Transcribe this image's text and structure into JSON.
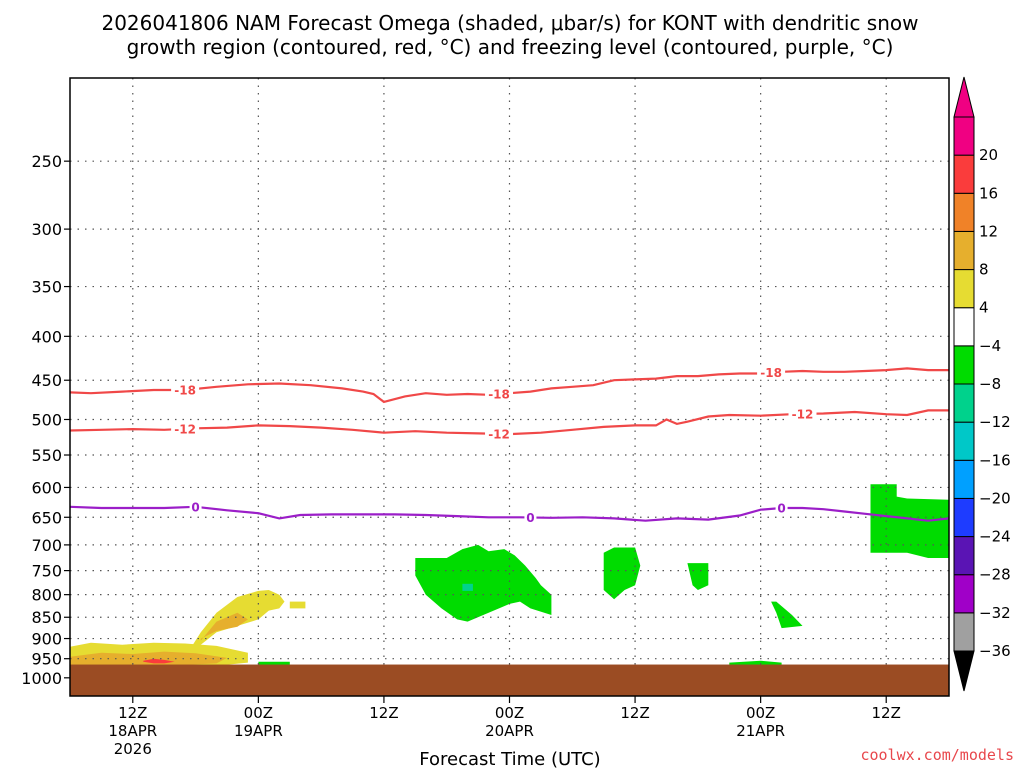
{
  "chart_data": {
    "type": "heatmap",
    "title_line1": "2026041806 NAM Forecast Omega (shaded, μbar/s) for KONT with dendritic snow",
    "title_line2": "growth region (contoured, red, °C) and freezing level (contoured, purple, °C)",
    "xlabel": "Forecast Time (UTC)",
    "credit": "coolwx.com/models",
    "x_unit": "hours since 2026-04-18 06Z",
    "xlim": [
      0,
      84
    ],
    "ylim_hpa": [
      1050,
      200
    ],
    "y_ticks": [
      {
        "value": 250,
        "label": "250"
      },
      {
        "value": 300,
        "label": "300"
      },
      {
        "value": 350,
        "label": "350"
      },
      {
        "value": 400,
        "label": "400"
      },
      {
        "value": 450,
        "label": "450"
      },
      {
        "value": 500,
        "label": "500"
      },
      {
        "value": 550,
        "label": "550"
      },
      {
        "value": 600,
        "label": "600"
      },
      {
        "value": 650,
        "label": "650"
      },
      {
        "value": 700,
        "label": "700"
      },
      {
        "value": 750,
        "label": "750"
      },
      {
        "value": 800,
        "label": "800"
      },
      {
        "value": 850,
        "label": "850"
      },
      {
        "value": 900,
        "label": "900"
      },
      {
        "value": 950,
        "label": "950"
      },
      {
        "value": 1000,
        "label": "1000"
      }
    ],
    "x_ticks": [
      {
        "hour": 6,
        "lines": [
          "12Z",
          "18APR",
          "2026"
        ]
      },
      {
        "hour": 18,
        "lines": [
          "00Z",
          "19APR"
        ]
      },
      {
        "hour": 30,
        "lines": [
          "12Z"
        ]
      },
      {
        "hour": 42,
        "lines": [
          "00Z",
          "20APR"
        ]
      },
      {
        "hour": 54,
        "lines": [
          "12Z"
        ]
      },
      {
        "hour": 66,
        "lines": [
          "00Z",
          "21APR"
        ]
      },
      {
        "hour": 78,
        "lines": [
          "12Z"
        ]
      }
    ],
    "colorbar": {
      "levels": [
        -36,
        -32,
        -28,
        -24,
        -20,
        -16,
        -12,
        -8,
        -4,
        4,
        8,
        12,
        16,
        20
      ],
      "colors": [
        "#a0a0a0",
        "#a000c8",
        "#5a14b4",
        "#1e3cff",
        "#00a0ff",
        "#00c8c8",
        "#00d28c",
        "#00dc00",
        "#ffffff",
        "#e6dc32",
        "#e6af2d",
        "#f08228",
        "#fa3c3c",
        "#f00082"
      ],
      "under_color": "#000000",
      "over_color": "#f00082"
    },
    "terrain_color": "#9b4c23",
    "terrain_top_hpa": 965,
    "series": [
      {
        "name": "-18 °C isotherm",
        "color": "#f04848",
        "label": "-18",
        "label_hours": [
          11,
          41,
          67
        ],
        "x": [
          0,
          2,
          5,
          8,
          11,
          14,
          17,
          20,
          23,
          26,
          28,
          29,
          30,
          32,
          34,
          36,
          38,
          40,
          42,
          44,
          46,
          48,
          50,
          52,
          54,
          56,
          58,
          60,
          62,
          64,
          66,
          68,
          70,
          72,
          74,
          76,
          78,
          80,
          82,
          84
        ],
        "y": [
          465,
          466,
          464,
          462,
          462,
          458,
          455,
          454,
          456,
          460,
          464,
          467,
          477,
          470,
          466,
          468,
          467,
          468,
          466,
          464,
          460,
          458,
          456,
          450,
          449,
          448,
          445,
          445,
          443,
          442,
          442,
          440,
          439,
          440,
          440,
          439,
          438,
          436,
          438,
          438
        ]
      },
      {
        "name": "-12 °C isotherm",
        "color": "#f04848",
        "label": "-12",
        "label_hours": [
          11,
          41,
          70
        ],
        "x": [
          0,
          3,
          6,
          9,
          12,
          15,
          18,
          21,
          24,
          27,
          30,
          33,
          36,
          39,
          42,
          45,
          48,
          51,
          54,
          56,
          57,
          58,
          59,
          61,
          63,
          66,
          69,
          72,
          75,
          78,
          80,
          82,
          84
        ],
        "y": [
          515,
          514,
          513,
          514,
          512,
          511,
          508,
          509,
          511,
          514,
          518,
          516,
          518,
          519,
          520,
          518,
          514,
          510,
          508,
          508,
          500,
          506,
          503,
          496,
          494,
          495,
          493,
          492,
          490,
          493,
          494,
          488,
          488
        ]
      },
      {
        "name": "0 °C isotherm (freezing level)",
        "color": "#9b1ec8",
        "label": "0",
        "label_hours": [
          12,
          44,
          68
        ],
        "x": [
          0,
          3,
          6,
          9,
          12,
          15,
          18,
          20,
          22,
          25,
          28,
          31,
          34,
          37,
          40,
          43,
          46,
          49,
          52,
          55,
          58,
          61,
          64,
          66,
          68,
          70,
          72,
          74,
          76,
          78,
          80,
          82,
          84
        ],
        "y": [
          632,
          634,
          634,
          634,
          632,
          638,
          643,
          652,
          646,
          645,
          645,
          645,
          646,
          648,
          650,
          650,
          651,
          650,
          652,
          656,
          652,
          654,
          647,
          637,
          634,
          634,
          636,
          640,
          644,
          648,
          652,
          656,
          652
        ]
      }
    ],
    "regions": [
      {
        "name": "ascent-yellow-low",
        "color": "#e6dc32",
        "x": [
          0,
          2,
          5,
          8,
          11,
          14,
          17,
          17,
          14,
          11,
          8,
          5,
          2,
          0
        ],
        "y": [
          920,
          910,
          915,
          910,
          912,
          918,
          935,
          960,
          968,
          968,
          968,
          968,
          968,
          968
        ]
      },
      {
        "name": "ascent-orange-low",
        "color": "#e6af2d",
        "x": [
          0,
          3,
          6,
          9,
          12,
          15,
          14,
          11,
          8,
          5,
          3,
          0
        ],
        "y": [
          945,
          935,
          938,
          932,
          936,
          948,
          962,
          966,
          965,
          966,
          966,
          965
        ]
      },
      {
        "name": "ascent-red-low",
        "color": "#fa3c3c",
        "x": [
          7,
          8,
          9,
          10,
          9,
          8,
          7
        ],
        "y": [
          955,
          950,
          953,
          958,
          962,
          962,
          958
        ]
      },
      {
        "name": "ascent-yellow-upper",
        "color": "#e6dc32",
        "x": [
          11.5,
          12.5,
          14,
          16,
          18,
          19,
          20,
          20.5,
          20,
          19,
          18,
          16,
          14,
          12.5,
          11.5
        ],
        "y": [
          925,
          885,
          840,
          805,
          792,
          790,
          800,
          815,
          830,
          835,
          855,
          870,
          885,
          915,
          930
        ]
      },
      {
        "name": "ascent-orange-upper",
        "color": "#e6af2d",
        "x": [
          12.5,
          14,
          16,
          17,
          16,
          14,
          12.5
        ],
        "y": [
          905,
          860,
          840,
          855,
          872,
          882,
          900
        ]
      },
      {
        "name": "ascent-yellow-small",
        "color": "#e6dc32",
        "x": [
          21,
          22.5,
          22.5,
          21
        ],
        "y": [
          815,
          815,
          830,
          830
        ]
      },
      {
        "name": "descent-green-1",
        "color": "#00dc00",
        "x": [
          33,
          36,
          37.5,
          39,
          40,
          41.5,
          42.5,
          43.5,
          44.5,
          45,
          46,
          46,
          44,
          43,
          42,
          41,
          40,
          38,
          37,
          35.5,
          34,
          33
        ],
        "y": [
          725,
          725,
          708,
          700,
          712,
          708,
          720,
          740,
          765,
          780,
          800,
          845,
          830,
          815,
          820,
          830,
          840,
          860,
          855,
          830,
          800,
          760
        ]
      },
      {
        "name": "descent-teal-spot",
        "color": "#00d28c",
        "x": [
          37.5,
          38.5,
          38.5,
          37.5
        ],
        "y": [
          777,
          777,
          792,
          792
        ]
      },
      {
        "name": "descent-green-2",
        "color": "#00dc00",
        "x": [
          51,
          52,
          54,
          54.5,
          54,
          53,
          52,
          51
        ],
        "y": [
          715,
          705,
          705,
          740,
          780,
          790,
          810,
          790
        ]
      },
      {
        "name": "descent-green-3",
        "color": "#00dc00",
        "x": [
          59,
          61,
          61,
          60,
          59.5
        ],
        "y": [
          735,
          735,
          780,
          790,
          780
        ]
      },
      {
        "name": "descent-green-4",
        "color": "#00dc00",
        "x": [
          67,
          67.5,
          69,
          70,
          68,
          67.5
        ],
        "y": [
          815,
          815,
          845,
          870,
          875,
          840
        ]
      },
      {
        "name": "descent-green-5",
        "color": "#00dc00",
        "x": [
          76.5,
          79,
          79,
          80,
          84,
          84,
          82,
          80,
          76.5
        ],
        "y": [
          595,
          595,
          615,
          618,
          620,
          725,
          725,
          715,
          715
        ]
      },
      {
        "name": "descent-green-near-sfc-1",
        "color": "#00dc00",
        "x": [
          18,
          21,
          21,
          18
        ],
        "y": [
          958,
          958,
          966,
          966
        ]
      },
      {
        "name": "descent-green-near-sfc-2",
        "color": "#00dc00",
        "x": [
          63,
          66,
          68,
          68,
          63
        ],
        "y": [
          960,
          955,
          960,
          966,
          966
        ]
      }
    ]
  }
}
